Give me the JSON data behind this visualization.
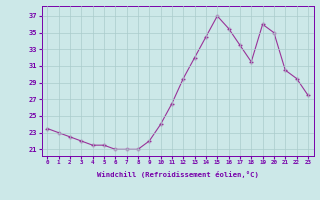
{
  "x": [
    0,
    1,
    2,
    3,
    4,
    5,
    6,
    7,
    8,
    9,
    10,
    11,
    12,
    13,
    14,
    15,
    16,
    17,
    18,
    19,
    20,
    21,
    22,
    23
  ],
  "y": [
    23.5,
    23.0,
    22.5,
    22.0,
    21.5,
    21.5,
    21.0,
    21.0,
    21.0,
    22.0,
    24.0,
    26.5,
    29.5,
    32.0,
    34.5,
    37.0,
    35.5,
    33.5,
    31.5,
    36.0,
    35.0,
    30.5,
    29.5,
    27.5
  ],
  "line_color": "#993399",
  "marker": "+",
  "marker_size": 3.5,
  "bg_color": "#cce8e8",
  "grid_color": "#aacccc",
  "xlabel": "Windchill (Refroidissement éolien,°C)",
  "ylabel_ticks": [
    21,
    23,
    25,
    27,
    29,
    31,
    33,
    35,
    37
  ],
  "xlim": [
    -0.5,
    23.5
  ],
  "ylim": [
    20.2,
    38.2
  ],
  "xtick_labels": [
    "0",
    "1",
    "2",
    "3",
    "4",
    "5",
    "6",
    "7",
    "8",
    "9",
    "10",
    "11",
    "12",
    "13",
    "14",
    "15",
    "16",
    "17",
    "18",
    "19",
    "20",
    "21",
    "22",
    "23"
  ],
  "label_color": "#7700aa",
  "tick_color": "#7700aa"
}
